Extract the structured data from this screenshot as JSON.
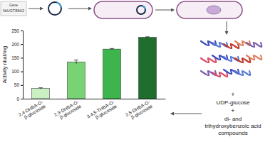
{
  "chart_data": {
    "type": "bar",
    "categories": [
      "2,4-DHBA-O-β-glucoside",
      "2,3-DHBA-O-β-glucoside",
      "3,4,5-THBA-O-β-glucoside",
      "2,5-DHBA-O-β-glucoside"
    ],
    "values": [
      38,
      135,
      182,
      225
    ],
    "errors": [
      2,
      7,
      2,
      2
    ],
    "colors": [
      "#c9efc2",
      "#79d374",
      "#3db54c",
      "#1f6e2d"
    ],
    "y_label": "Activity nkat/mg",
    "ylim": [
      0,
      250
    ],
    "yticks": [
      0,
      50,
      100,
      150,
      200,
      250
    ]
  },
  "diagram": {
    "gene_label": "Gene",
    "gene_name": "NtUGT89A2",
    "plus": "+",
    "substrate_1": "UDP-glucose",
    "substrate_2": [
      "di- and",
      "trihydroxybenzoic acid",
      "compounds"
    ]
  }
}
